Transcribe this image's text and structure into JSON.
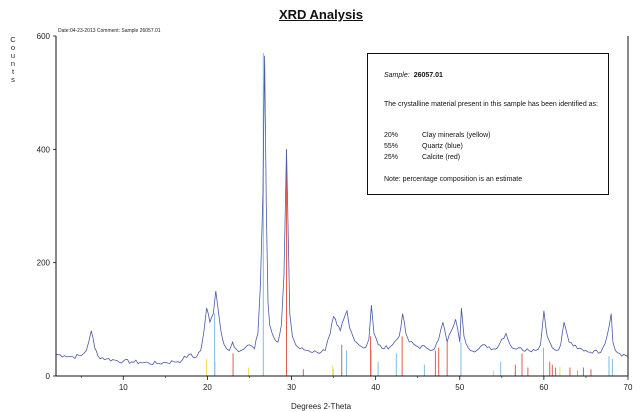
{
  "header": {
    "title": "XRD Analysis",
    "meta": "Date:04-23-2013   Comment: Sample 26057.01"
  },
  "colors": {
    "pattern": "#4a5aa8",
    "clay": "#e8d84a",
    "quartz": "#6fb6e0",
    "calcite": "#e04a3a",
    "frame": "#111111"
  },
  "legend": {
    "sample_label": "Sample:",
    "sample_id": "26057.01",
    "intro": "The crystalline material present in this sample has been identified as:",
    "components": [
      {
        "pct": "20%",
        "name": "Clay minerals (yellow)"
      },
      {
        "pct": "55%",
        "name": "Quartz (blue)"
      },
      {
        "pct": "25%",
        "name": "Calcite (red)"
      }
    ],
    "note": "Note: percentage composition is an estimate"
  },
  "chart_data": {
    "type": "line",
    "title": "XRD Analysis",
    "xlabel": "Degrees 2-Theta",
    "ylabel": "Counts",
    "xlim": [
      2,
      70
    ],
    "ylim": [
      0,
      600
    ],
    "x_ticks": [
      10,
      20,
      30,
      40,
      50,
      60,
      70
    ],
    "y_ticks": [
      0,
      200,
      400,
      600
    ],
    "grid": false,
    "series": [
      {
        "name": "",
        "x": [
          2,
          3,
          4,
          5,
          5.6,
          6.2,
          6.6,
          7,
          8,
          9,
          10,
          11,
          12,
          13,
          14,
          15,
          16,
          17,
          17.8,
          18.5,
          19.2,
          19.6,
          19.9,
          20.3,
          20.7,
          21.0,
          21.3,
          21.6,
          22,
          22.6,
          23.0,
          23.4,
          24,
          24.5,
          25,
          25.6,
          26.0,
          26.3,
          26.6,
          26.8,
          27.0,
          27.2,
          27.4,
          27.7,
          28.0,
          28.4,
          28.8,
          29.1,
          29.4,
          29.6,
          29.8,
          30.1,
          30.5,
          31,
          32,
          33,
          34,
          34.6,
          35.0,
          35.4,
          35.8,
          36.2,
          36.6,
          36.9,
          37.3,
          38,
          38.8,
          39.2,
          39.5,
          39.8,
          40.3,
          41,
          42,
          42.8,
          43.2,
          43.6,
          44,
          45,
          46,
          47,
          47.5,
          48.0,
          48.5,
          49,
          49.5,
          50.0,
          50.2,
          50.5,
          51,
          52,
          53,
          54,
          54.5,
          55.0,
          55.5,
          56,
          56.5,
          57,
          57.5,
          58,
          59,
          59.6,
          60.0,
          60.4,
          61,
          61.5,
          62.0,
          62.4,
          63,
          64,
          65,
          65.5,
          66,
          66.5,
          67,
          67.5,
          68.0,
          68.2,
          68.5,
          69,
          70
        ],
        "y": [
          38,
          36,
          34,
          36,
          45,
          80,
          50,
          35,
          30,
          28,
          26,
          25,
          24,
          23,
          22,
          24,
          25,
          28,
          38,
          32,
          45,
          80,
          120,
          95,
          110,
          150,
          115,
          80,
          55,
          45,
          60,
          48,
          45,
          50,
          55,
          48,
          75,
          160,
          320,
          565,
          300,
          130,
          90,
          75,
          65,
          60,
          90,
          180,
          400,
          250,
          110,
          70,
          55,
          48,
          45,
          42,
          45,
          75,
          105,
          90,
          80,
          100,
          115,
          85,
          70,
          55,
          50,
          65,
          125,
          75,
          55,
          48,
          55,
          70,
          110,
          75,
          60,
          52,
          50,
          48,
          65,
          95,
          60,
          80,
          100,
          60,
          120,
          70,
          50,
          45,
          55,
          48,
          50,
          65,
          75,
          55,
          48,
          50,
          45,
          48,
          45,
          55,
          115,
          70,
          50,
          45,
          55,
          95,
          60,
          48,
          45,
          42,
          45,
          40,
          50,
          70,
          110,
          60,
          45,
          40,
          35
        ]
      }
    ],
    "reference_lines": {
      "clay": [
        {
          "x": 19.9,
          "y": 30
        },
        {
          "x": 20.9,
          "y": 25
        },
        {
          "x": 24.9,
          "y": 15
        },
        {
          "x": 34.9,
          "y": 18
        },
        {
          "x": 35.0,
          "y": 12
        },
        {
          "x": 54.0,
          "y": 10
        },
        {
          "x": 61.9,
          "y": 16
        },
        {
          "x": 56.6,
          "y": 10
        }
      ],
      "quartz": [
        {
          "x": 20.86,
          "y": 110
        },
        {
          "x": 26.64,
          "y": 570
        },
        {
          "x": 36.54,
          "y": 45
        },
        {
          "x": 39.46,
          "y": 45
        },
        {
          "x": 40.29,
          "y": 25
        },
        {
          "x": 42.45,
          "y": 40
        },
        {
          "x": 45.79,
          "y": 20
        },
        {
          "x": 50.14,
          "y": 60
        },
        {
          "x": 54.87,
          "y": 25
        },
        {
          "x": 59.95,
          "y": 50
        },
        {
          "x": 64.0,
          "y": 10
        },
        {
          "x": 67.74,
          "y": 35
        },
        {
          "x": 68.14,
          "y": 30
        }
      ],
      "calcite": [
        {
          "x": 23.05,
          "y": 40
        },
        {
          "x": 29.4,
          "y": 400
        },
        {
          "x": 31.4,
          "y": 12
        },
        {
          "x": 35.97,
          "y": 55
        },
        {
          "x": 39.4,
          "y": 70
        },
        {
          "x": 43.15,
          "y": 70
        },
        {
          "x": 47.1,
          "y": 45
        },
        {
          "x": 47.5,
          "y": 50
        },
        {
          "x": 48.5,
          "y": 60
        },
        {
          "x": 56.6,
          "y": 20
        },
        {
          "x": 57.4,
          "y": 40
        },
        {
          "x": 58.1,
          "y": 15
        },
        {
          "x": 60.7,
          "y": 25
        },
        {
          "x": 61.0,
          "y": 20
        },
        {
          "x": 61.4,
          "y": 15
        },
        {
          "x": 63.1,
          "y": 15
        },
        {
          "x": 64.7,
          "y": 15
        },
        {
          "x": 65.6,
          "y": 12
        }
      ]
    }
  }
}
